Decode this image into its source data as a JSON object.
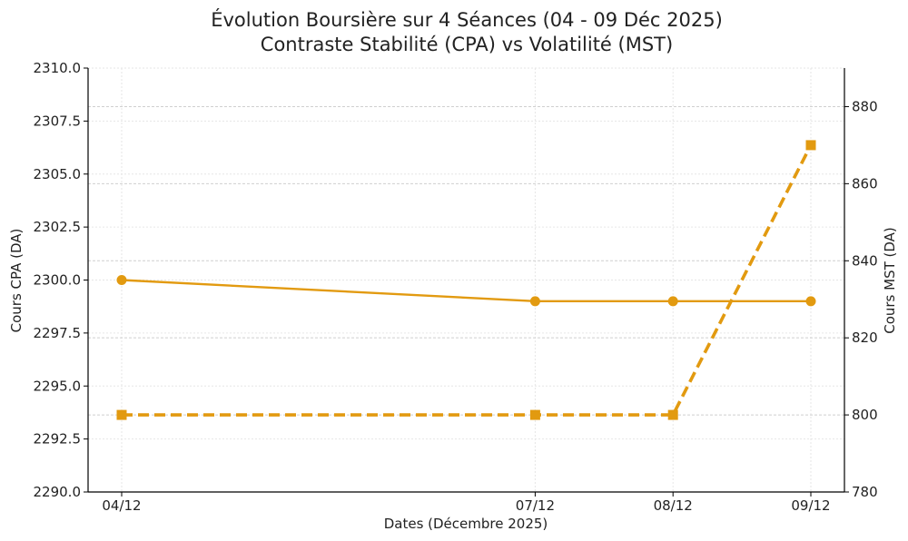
{
  "chart_data": {
    "type": "line",
    "title": "Évolution Boursière sur 4 Séances (04 - 09 Déc 2025)",
    "subtitle": "Contraste Stabilité (CPA) vs Volatilité (MST)",
    "xlabel": "Dates (Décembre 2025)",
    "ylabel_left": "Cours CPA (DA)",
    "ylabel_right": "Cours MST (DA)",
    "x": [
      "2025-12-04",
      "2025-12-07",
      "2025-12-08",
      "2025-12-09"
    ],
    "x_tick_labels": [
      "04/12",
      "07/12",
      "08/12",
      "09/12"
    ],
    "y_left_lim": [
      2290.0,
      2310.0
    ],
    "y_left_ticks": [
      "2290.0",
      "2292.5",
      "2295.0",
      "2297.5",
      "2300.0",
      "2302.5",
      "2305.0",
      "2307.5",
      "2310.0"
    ],
    "y_right_lim": [
      780,
      890
    ],
    "y_right_ticks": [
      "780",
      "800",
      "820",
      "840",
      "860",
      "880"
    ],
    "grid": true,
    "color": "#E29A10",
    "series": [
      {
        "axis": "left",
        "style": "solid",
        "marker": "circle",
        "values": [
          2300,
          2299,
          2299,
          2299
        ]
      },
      {
        "axis": "right",
        "style": "dashed",
        "marker": "square",
        "values": [
          800,
          800,
          800,
          870
        ]
      }
    ]
  }
}
